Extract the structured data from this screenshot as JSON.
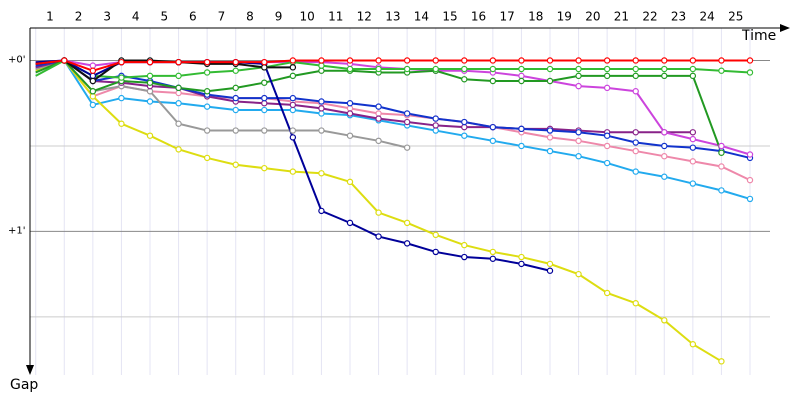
{
  "chart_data": {
    "type": "line",
    "xlabel": "Time",
    "ylabel": "Gap",
    "x": [
      0.5,
      1.5,
      2.5,
      3.5,
      4.5,
      5.5,
      6.5,
      7.5,
      8.5,
      9.5,
      10.5,
      11.5,
      12.5,
      13.5,
      14.5,
      15.5,
      16.5,
      17.5,
      18.5,
      19.5,
      20.5,
      21.5,
      22.5,
      23.5,
      24.5,
      25.5
    ],
    "xlim": [
      0.3,
      26.9
    ],
    "xticks": [
      1,
      2,
      3,
      4,
      5,
      6,
      7,
      8,
      9,
      10,
      11,
      12,
      13,
      14,
      15,
      16,
      17,
      18,
      19,
      20,
      21,
      22,
      23,
      24,
      25
    ],
    "ylim": [
      -0.19,
      1.84
    ],
    "yticks": [
      {
        "value": 0,
        "label": "+0'"
      },
      {
        "value": 1,
        "label": "+1'"
      }
    ],
    "minor_yticks": [
      0.5,
      1.5
    ],
    "grid": true,
    "series": [
      {
        "color": "#22aaee",
        "values": [
          0.04,
          0,
          0.26,
          0.22,
          0.24,
          0.25,
          0.27,
          0.29,
          0.29,
          0.29,
          0.31,
          0.32,
          0.35,
          0.38,
          0.41,
          0.44,
          0.47,
          0.5,
          0.53,
          0.56,
          0.6,
          0.65,
          0.68,
          0.72,
          0.76,
          0.81
        ]
      },
      {
        "color": "#ee88aa",
        "values": [
          0.04,
          0,
          0.21,
          0.15,
          0.18,
          0.19,
          0.21,
          0.22,
          0.22,
          0.24,
          0.25,
          0.28,
          0.31,
          0.32,
          0.34,
          0.36,
          0.39,
          0.42,
          0.45,
          0.47,
          0.5,
          0.53,
          0.56,
          0.59,
          0.62,
          0.7
        ]
      },
      {
        "color": "#dddd11",
        "values": [
          0.06,
          0,
          0.21,
          0.37,
          0.44,
          0.52,
          0.57,
          0.61,
          0.63,
          0.65,
          0.66,
          0.71,
          0.89,
          0.95,
          1.02,
          1.08,
          1.12,
          1.15,
          1.19,
          1.25,
          1.36,
          1.42,
          1.52,
          1.66,
          1.76,
          null
        ]
      },
      {
        "color": "#999999",
        "values": [
          0.05,
          0,
          0.18,
          0.15,
          0.18,
          0.37,
          0.41,
          0.41,
          0.41,
          0.41,
          0.41,
          0.44,
          0.47,
          0.51,
          null,
          null,
          null,
          null,
          null,
          null,
          null,
          null,
          null,
          null,
          null,
          null
        ]
      },
      {
        "color": "#882288",
        "values": [
          0.04,
          0,
          0.12,
          0.13,
          0.15,
          0.16,
          0.21,
          0.24,
          0.25,
          0.26,
          0.28,
          0.31,
          0.34,
          0.36,
          0.38,
          0.39,
          0.39,
          0.4,
          0.4,
          0.41,
          0.42,
          0.42,
          0.42,
          0.42,
          null,
          null
        ]
      },
      {
        "color": "#1133cc",
        "values": [
          0.03,
          0,
          0.12,
          0.09,
          0.12,
          0.16,
          0.2,
          0.22,
          0.22,
          0.22,
          0.24,
          0.25,
          0.27,
          0.31,
          0.34,
          0.36,
          0.39,
          0.4,
          0.41,
          0.42,
          0.44,
          0.48,
          0.5,
          0.51,
          0.53,
          0.57
        ]
      },
      {
        "color": "#cc44dd",
        "values": [
          0.01,
          0,
          0.03,
          0.01,
          0.01,
          0.01,
          0.01,
          0.01,
          0.01,
          0.01,
          0.01,
          0.02,
          0.04,
          0.05,
          0.06,
          0.06,
          0.07,
          0.09,
          0.12,
          0.15,
          0.16,
          0.18,
          0.42,
          0.46,
          0.5,
          0.55
        ]
      },
      {
        "color": "#229922",
        "values": [
          0.07,
          0,
          0.18,
          0.12,
          0.13,
          0.16,
          0.18,
          0.16,
          0.13,
          0.09,
          0.06,
          0.06,
          0.07,
          0.07,
          0.06,
          0.11,
          0.12,
          0.12,
          0.12,
          0.09,
          0.09,
          0.09,
          0.09,
          0.09,
          0.54,
          null
        ]
      },
      {
        "color": "#33bb33",
        "values": [
          0.09,
          0,
          0.09,
          0.1,
          0.09,
          0.09,
          0.07,
          0.06,
          0.04,
          0.01,
          0.03,
          0.05,
          0.05,
          0.05,
          0.05,
          0.05,
          0.05,
          0.05,
          0.05,
          0.05,
          0.05,
          0.05,
          0.05,
          0.05,
          0.06,
          0.07
        ]
      },
      {
        "color": "#000099",
        "values": [
          0.01,
          0,
          0.09,
          0.01,
          0.01,
          0.01,
          0.01,
          0.01,
          0.02,
          0.45,
          0.88,
          0.95,
          1.03,
          1.07,
          1.12,
          1.15,
          1.16,
          1.19,
          1.23,
          null,
          null,
          null,
          null,
          null,
          null,
          null
        ]
      },
      {
        "color": "#111111",
        "values": [
          0.02,
          0,
          0.12,
          0,
          0,
          0.01,
          0.02,
          0.02,
          0.04,
          0.04,
          null,
          null,
          null,
          null,
          null,
          null,
          null,
          null,
          null,
          null,
          null,
          null,
          null,
          null,
          null,
          null
        ]
      },
      {
        "color": "#ff0000",
        "values": [
          0.02,
          0,
          0.06,
          0.01,
          0.01,
          0.01,
          0.01,
          0.01,
          0.01,
          0,
          0,
          0,
          0,
          0,
          0,
          0,
          0,
          0,
          0,
          0,
          0,
          0,
          0,
          0,
          0,
          0
        ]
      }
    ]
  }
}
